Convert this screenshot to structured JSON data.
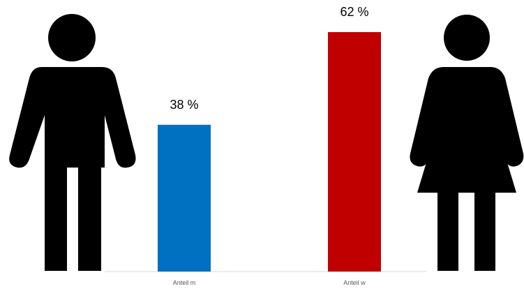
{
  "chart_data": {
    "type": "bar",
    "categories": [
      "Anteil m",
      "Anteil w"
    ],
    "values": [
      38,
      62
    ],
    "data_labels": [
      "38 %",
      "62 %"
    ],
    "colors": [
      "#0070C0",
      "#C00000"
    ],
    "ylim": [
      0,
      62
    ],
    "title": "",
    "xlabel": "",
    "ylabel": "",
    "grid": false,
    "legend": "none"
  },
  "icons": {
    "left": "man-pictogram-icon",
    "right": "woman-pictogram-icon"
  }
}
